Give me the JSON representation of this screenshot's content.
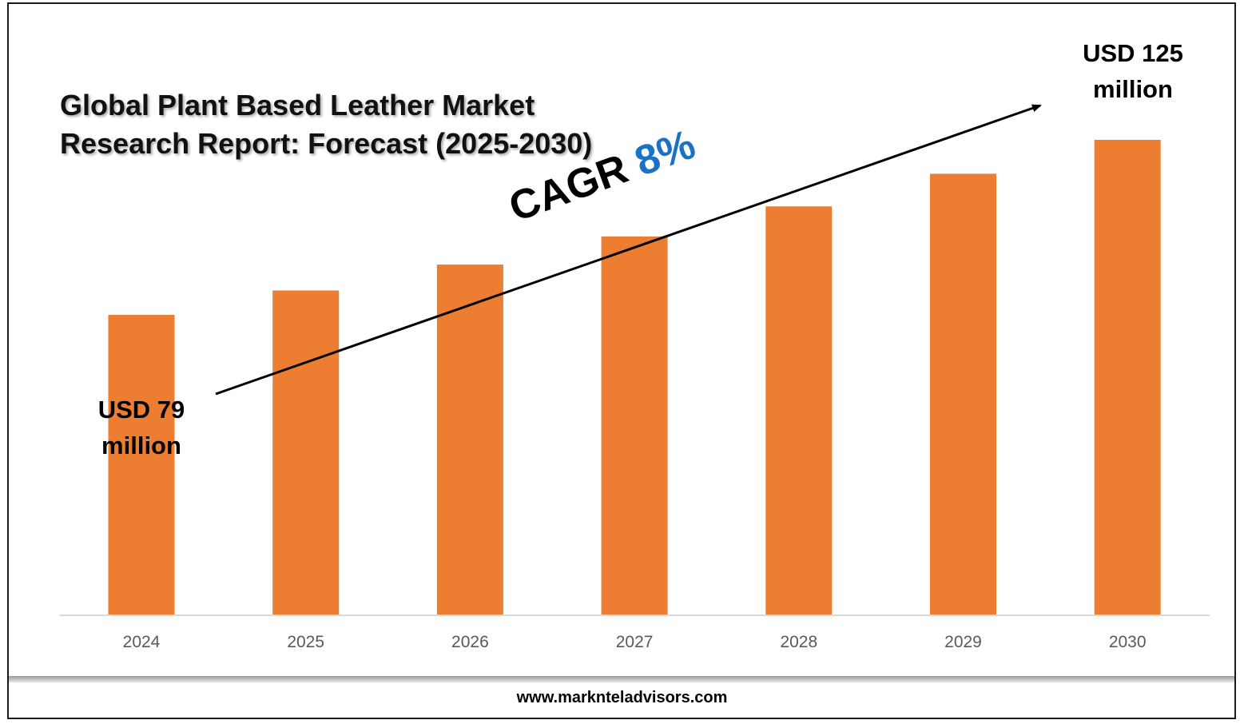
{
  "chart_data": {
    "type": "bar",
    "title": "Global Plant Based Leather Market Research Report: Forecast (2025-2030)",
    "categories": [
      "2024",
      "2025",
      "2026",
      "2027",
      "2028",
      "2029",
      "2030"
    ],
    "values": [
      79,
      85.4,
      92.2,
      99.6,
      107.5,
      116.1,
      125
    ],
    "ylim": [
      0,
      140
    ],
    "bar_color": "#ed7d31",
    "grid": false,
    "legend": "none"
  },
  "annotations": {
    "start_label_line1": "USD 79",
    "start_label_line2": "million",
    "end_label_line1": "USD 125",
    "end_label_line2": "million",
    "cagr_prefix": "CAGR",
    "cagr_value": "8%",
    "cagr_color": "#1a72c4"
  },
  "footer": {
    "url": "www.marknteladvisors.com"
  }
}
